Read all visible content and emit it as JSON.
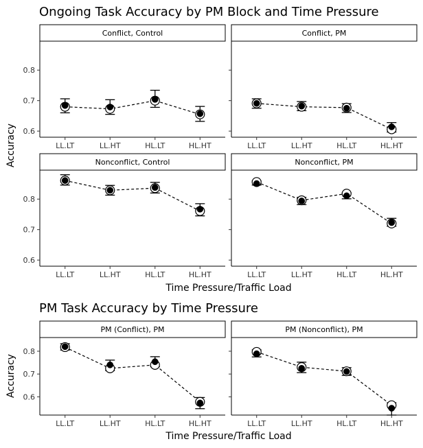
{
  "figure": {
    "ylabel": "Accuracy",
    "xlabel": "Time Pressure/Traffic Load"
  },
  "chart_data": [
    {
      "type": "scatter",
      "title": "Ongoing Task Accuracy by PM Block and Time Pressure",
      "xlabel": "Time Pressure/Traffic Load",
      "ylabel": "Accuracy",
      "categories": [
        "LL.LT",
        "LL.HT",
        "HL.LT",
        "HL.HT"
      ],
      "yticks": [
        0.6,
        0.7,
        0.8
      ],
      "ylim": [
        0.58,
        0.895
      ],
      "grid": false,
      "panels": [
        {
          "strip": "Conflict, Control",
          "hollow": [
            0.68,
            0.673,
            0.7,
            0.655
          ],
          "solid": [
            0.684,
            0.679,
            0.704,
            0.657
          ],
          "err_low": [
            0.66,
            0.655,
            0.678,
            0.632
          ],
          "err_high": [
            0.706,
            0.703,
            0.734,
            0.681
          ]
        },
        {
          "strip": "Conflict, PM",
          "hollow": [
            0.691,
            0.68,
            0.677,
            0.606
          ],
          "solid": [
            0.691,
            0.682,
            0.675,
            0.614
          ],
          "err_low": [
            0.675,
            0.667,
            0.661,
            0.597
          ],
          "err_high": [
            0.706,
            0.697,
            0.69,
            0.628
          ]
        },
        {
          "strip": "Nonconflict, Control",
          "hollow": [
            0.861,
            0.829,
            0.836,
            0.761
          ],
          "solid": [
            0.861,
            0.829,
            0.838,
            0.767
          ],
          "err_low": [
            0.846,
            0.813,
            0.82,
            0.745
          ],
          "err_high": [
            0.88,
            0.845,
            0.855,
            0.785
          ]
        },
        {
          "strip": "Nonconflict, PM",
          "hollow": [
            0.856,
            0.796,
            0.818,
            0.72
          ],
          "solid": [
            0.851,
            0.794,
            0.811,
            0.723
          ],
          "err_low": [
            0.846,
            0.782,
            0.801,
            0.711
          ],
          "err_high": [
            0.86,
            0.806,
            0.821,
            0.737
          ]
        }
      ]
    },
    {
      "type": "scatter",
      "title": "PM Task Accuracy by Time Pressure",
      "xlabel": "Time Pressure/Traffic Load",
      "ylabel": "Accuracy",
      "categories": [
        "LL.LT",
        "LL.HT",
        "HL.LT",
        "HL.HT"
      ],
      "yticks": [
        0.6,
        0.7,
        0.8
      ],
      "ylim": [
        0.52,
        0.86
      ],
      "grid": false,
      "panels": [
        {
          "strip": "PM (Conflict), PM",
          "hollow": [
            0.818,
            0.725,
            0.74,
            0.578
          ],
          "solid": [
            0.82,
            0.74,
            0.754,
            0.573
          ],
          "err_low": [
            0.805,
            0.715,
            0.732,
            0.548
          ],
          "err_high": [
            0.833,
            0.761,
            0.776,
            0.597
          ]
        },
        {
          "strip": "PM (Nonconflict), PM",
          "hollow": [
            0.797,
            0.73,
            0.712,
            0.563
          ],
          "solid": [
            0.789,
            0.725,
            0.711,
            0.55
          ],
          "err_low": [
            0.775,
            0.706,
            0.694,
            0.52
          ],
          "err_high": [
            0.806,
            0.752,
            0.728,
            0.574
          ]
        }
      ]
    }
  ]
}
